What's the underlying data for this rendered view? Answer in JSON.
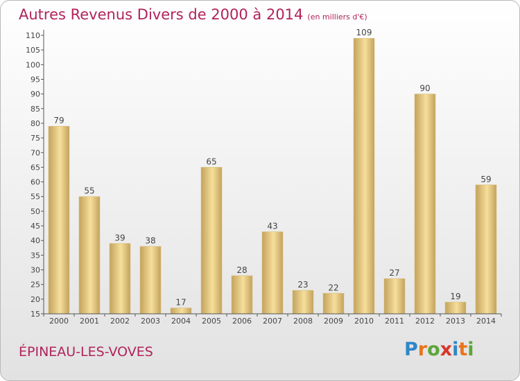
{
  "title": "Autres Revenus Divers de 2000 à 2014",
  "unit_note": "(en milliers d'€)",
  "location": "ÉPINEAU-LES-VOVES",
  "logo": {
    "text": "Proxiti",
    "letters": [
      {
        "char": "P",
        "color": "#2f86c8"
      },
      {
        "char": "r",
        "color": "#e8741e"
      },
      {
        "char": "o",
        "color": "#5aa63a"
      },
      {
        "char": "x",
        "color": "#d8342c"
      },
      {
        "char": "i",
        "color": "#2f86c8"
      },
      {
        "char": "t",
        "color": "#e8741e"
      },
      {
        "char": "i",
        "color": "#5aa63a"
      }
    ]
  },
  "colors": {
    "title": "#b0235a",
    "bar_light": "#f6df9c",
    "bar_dark": "#c3a25c",
    "axis": "#555555"
  },
  "chart_data": {
    "type": "bar",
    "categories": [
      "2000",
      "2001",
      "2002",
      "2003",
      "2004",
      "2005",
      "2006",
      "2007",
      "2008",
      "2009",
      "2010",
      "2011",
      "2012",
      "2013",
      "2014"
    ],
    "values": [
      79,
      55,
      39,
      38,
      17,
      65,
      28,
      43,
      23,
      22,
      109,
      27,
      90,
      19,
      59
    ],
    "title": "Autres Revenus Divers de 2000 à 2014",
    "xlabel": "",
    "ylabel": "",
    "ylim": [
      15,
      110
    ],
    "yticks": [
      15,
      20,
      25,
      30,
      35,
      40,
      45,
      50,
      55,
      60,
      65,
      70,
      75,
      80,
      85,
      90,
      95,
      100,
      105,
      110
    ],
    "grid": false,
    "legend": "none"
  }
}
